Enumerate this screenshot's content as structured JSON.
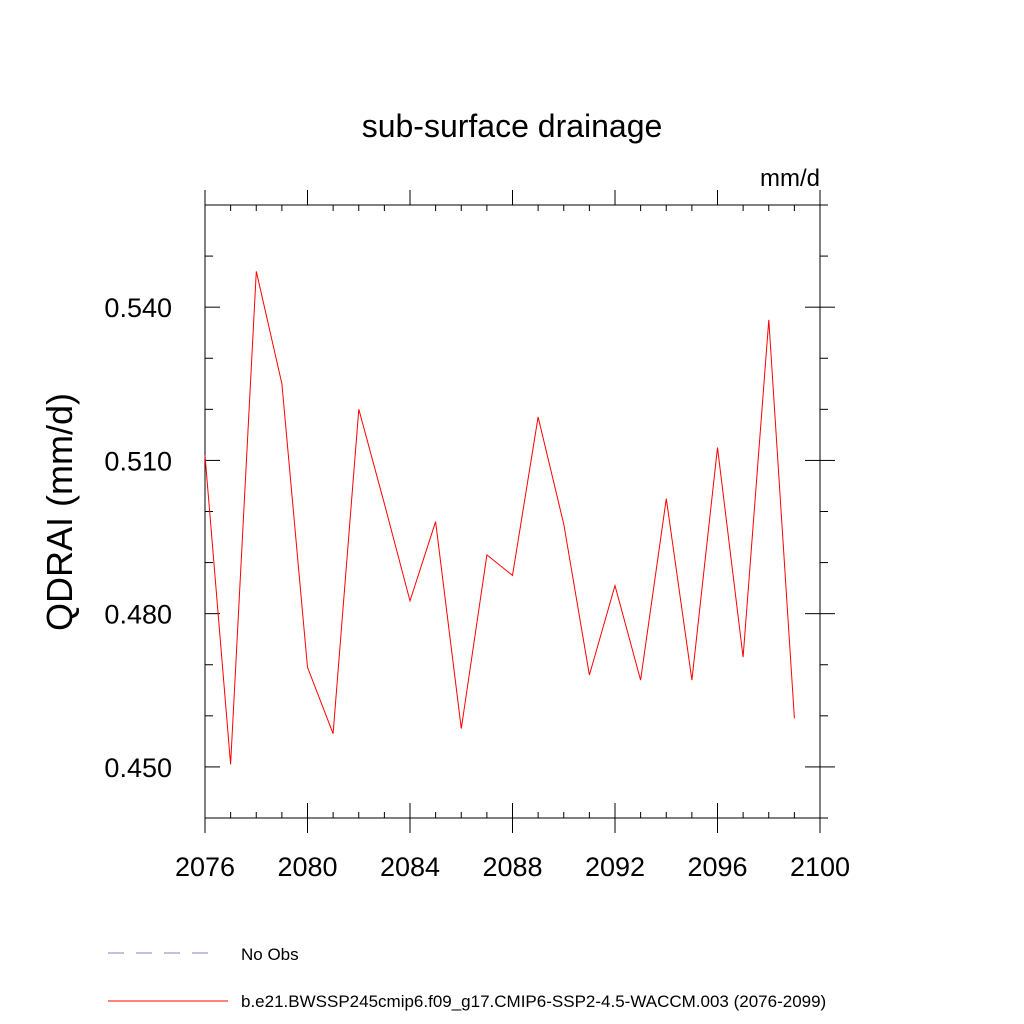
{
  "chart_data": {
    "type": "line",
    "title": "sub-surface drainage",
    "units": "mm/d",
    "ylabel": "QDRAI  (mm/d)",
    "xlabel": "",
    "xlim": [
      2076,
      2100
    ],
    "ylim": [
      0.44,
      0.56
    ],
    "x_ticks": [
      2076,
      2080,
      2084,
      2088,
      2092,
      2096,
      2100
    ],
    "x_tick_labels": [
      "2076",
      "2080",
      "2084",
      "2088",
      "2092",
      "2096",
      "2100"
    ],
    "y_ticks": [
      0.45,
      0.48,
      0.51,
      0.54
    ],
    "y_tick_labels": [
      "0.450",
      "0.480",
      "0.510",
      "0.540"
    ],
    "grid": false,
    "series": [
      {
        "name": "b.e21.BWSSP245cmip6.f09_g17.CMIP6-SSP2-4.5-WACCM.003 (2076-2099)",
        "color": "#ff0000",
        "x": [
          2076,
          2077,
          2078,
          2079,
          2080,
          2081,
          2082,
          2083,
          2084,
          2085,
          2086,
          2087,
          2088,
          2089,
          2090,
          2091,
          2092,
          2093,
          2094,
          2095,
          2096,
          2097,
          2098,
          2099
        ],
        "values": [
          0.511,
          0.4505,
          0.547,
          0.525,
          0.4695,
          0.4565,
          0.52,
          0.5015,
          0.4825,
          0.498,
          0.4575,
          0.4915,
          0.4875,
          0.5185,
          0.4975,
          0.468,
          0.4855,
          0.467,
          0.5025,
          0.467,
          0.5125,
          0.4715,
          0.5375,
          0.4595
        ]
      }
    ],
    "legend": {
      "position": "bottom-left",
      "entries": [
        {
          "label": "No Obs",
          "color": "#8080c0",
          "style": "dashed"
        },
        {
          "label": "b.e21.BWSSP245cmip6.f09_g17.CMIP6-SSP2-4.5-WACCM.003 (2076-2099)",
          "color": "#ff0000",
          "style": "solid"
        }
      ]
    }
  }
}
